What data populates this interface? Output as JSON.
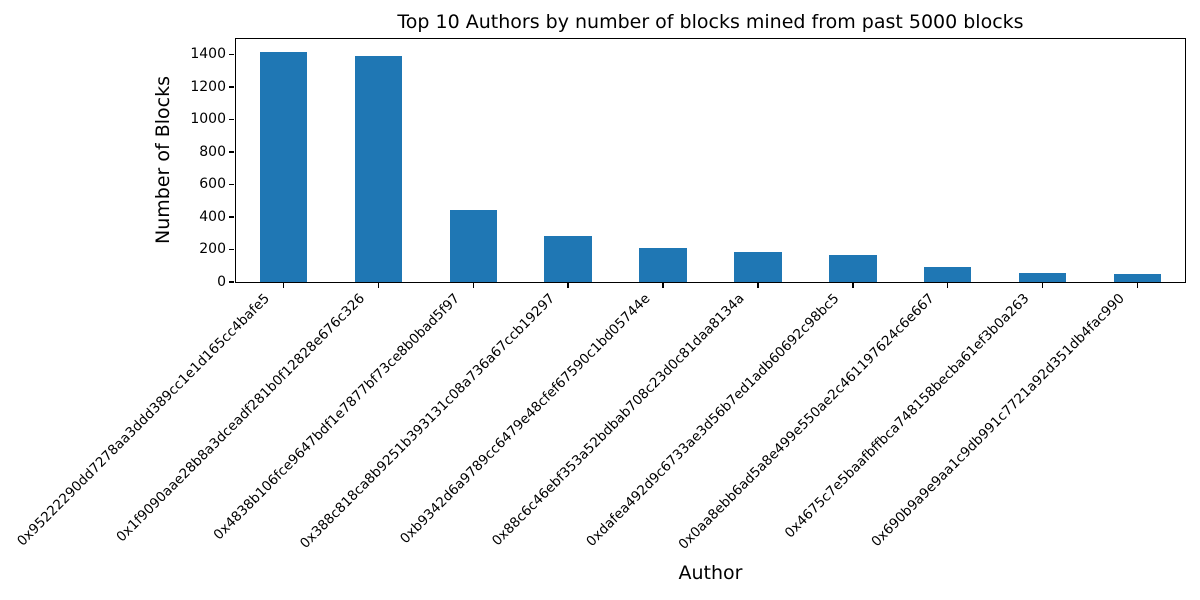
{
  "chart_data": {
    "type": "bar",
    "title": "Top 10 Authors by number of blocks mined from past 5000 blocks",
    "xlabel": "Author",
    "ylabel": "Number of Blocks",
    "categories": [
      "0x95222290dd7278aa3ddd389cc1e1d165cc4bafe5",
      "0x1f9090aae28b8a3dceadf281b0f12828e676c326",
      "0x4838b106fce9647bdf1e7877bf73ce8b0bad5f97",
      "0x388c818ca8b9251b393131c08a736a67ccb19297",
      "0xb9342d6a9789cc6479e48cfef67590c1bd05744e",
      "0x88c6c46ebf353a52bdbab708c23d0c81daa8134a",
      "0xdafea492d9c6733ae3d56b7ed1adb60692c98bc5",
      "0x0aa8ebb6ad5a8e499e550ae2c461197624c6e667",
      "0x4675c7e5baafbffbca748158becba61ef3b0a263",
      "0x690b9a9e9aa1c9db991c7721a92d351db4fac990"
    ],
    "values": [
      1417,
      1393,
      440,
      281,
      210,
      184,
      169,
      92,
      55,
      49
    ],
    "ylim": [
      0,
      1495
    ],
    "yticks": [
      0,
      200,
      400,
      600,
      800,
      1000,
      1200,
      1400
    ],
    "bar_color": "#1f77b4",
    "background": "#ffffff",
    "grid": false,
    "x_tick_rotation_deg": 45,
    "legend_position": "none"
  }
}
